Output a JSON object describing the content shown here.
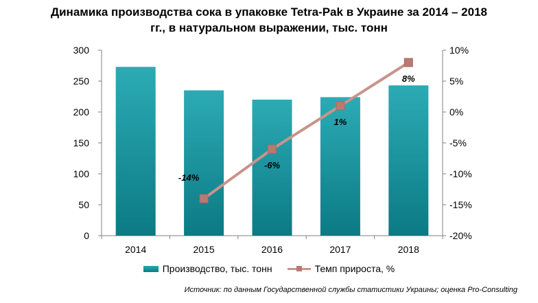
{
  "chart_data": {
    "type": "bar+line",
    "title_lines": [
      "Динамика производства сока в упаковке Tetra-Pak в Украине за 2014 – 2018",
      "гг., в натуральном выражении, тыс. тонн"
    ],
    "categories": [
      "2014",
      "2015",
      "2016",
      "2017",
      "2018"
    ],
    "series": [
      {
        "name": "Производство, тыс. тонн",
        "type": "bar",
        "axis": "left",
        "values": [
          273,
          235,
          220,
          224,
          243
        ],
        "color": "#1a99a3"
      },
      {
        "name": "Темп прироста, %",
        "type": "line",
        "axis": "right",
        "values": [
          null,
          -14,
          -6,
          1,
          8
        ],
        "data_labels": [
          "",
          "-14%",
          "-6%",
          "1%",
          "8%"
        ],
        "color": "#c9938b"
      }
    ],
    "y_left": {
      "min": 0,
      "max": 300,
      "ticks": [
        "0",
        "50",
        "100",
        "150",
        "200",
        "250",
        "300"
      ]
    },
    "y_right": {
      "min": -20,
      "max": 10,
      "ticks": [
        "-20%",
        "-15%",
        "-10%",
        "-5%",
        "0%",
        "5%",
        "10%"
      ]
    },
    "grid": false,
    "legend_position": "bottom",
    "source": "Источник: по данным Государственной службы статистики Украины; оценка Pro-Consulting"
  }
}
